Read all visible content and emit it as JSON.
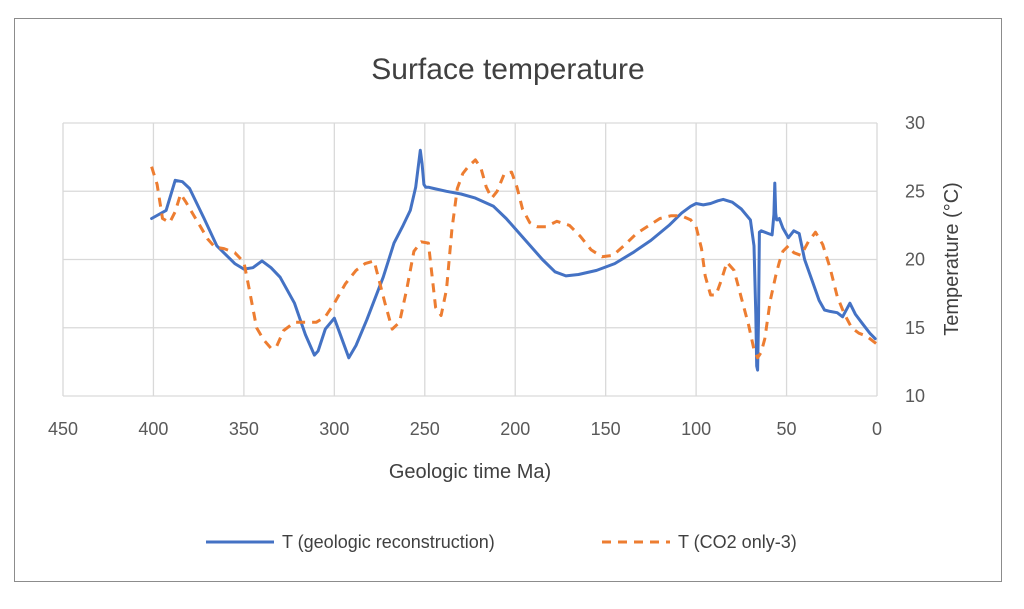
{
  "chart_data": {
    "type": "line",
    "title": "Surface temperature",
    "xlabel": "Geologic time Ma)",
    "ylabel": "Temperature (°C)",
    "xlim": [
      450,
      0
    ],
    "ylim": [
      10,
      30
    ],
    "x_ticks": [
      450,
      400,
      350,
      300,
      250,
      200,
      150,
      100,
      50,
      0
    ],
    "y_ticks": [
      10,
      15,
      20,
      25,
      30
    ],
    "y_axis_side": "right",
    "grid": true,
    "legend_position": "bottom",
    "series": [
      {
        "name": "T (geologic reconstruction)",
        "color": "#4472C4",
        "style": "solid",
        "x": [
          401,
          393,
          388,
          384,
          380,
          372,
          365,
          355,
          350,
          345,
          340,
          335,
          330,
          322,
          316,
          311,
          309,
          305,
          300,
          297,
          292,
          288,
          282,
          273,
          267,
          262,
          258,
          255,
          252.5,
          251.5,
          250.5,
          249.5,
          248,
          245,
          238,
          230,
          222,
          212,
          205,
          195,
          185,
          178,
          172,
          165,
          155,
          145,
          135,
          125,
          115,
          108,
          103,
          100,
          96,
          92,
          88,
          85,
          80,
          75,
          70,
          68,
          67,
          66.5,
          66,
          65.5,
          65,
          64,
          62,
          60,
          58,
          57,
          56.5,
          56,
          55.5,
          55,
          54,
          52,
          49,
          46,
          43,
          40,
          36,
          32,
          29,
          26,
          22,
          19,
          15,
          12,
          8,
          4,
          1
        ],
        "y": [
          23,
          23.6,
          25.8,
          25.7,
          25.2,
          23,
          21,
          19.7,
          19.3,
          19.4,
          19.9,
          19.4,
          18.7,
          16.8,
          14.5,
          13,
          13.3,
          14.9,
          15.7,
          14.6,
          12.8,
          13.7,
          15.6,
          18.7,
          21.2,
          22.5,
          23.6,
          25.3,
          28,
          27,
          25.5,
          25.3,
          25.3,
          25.2,
          25.0,
          24.8,
          24.5,
          23.9,
          23,
          21.5,
          20,
          19.1,
          18.8,
          18.9,
          19.2,
          19.7,
          20.5,
          21.4,
          22.5,
          23.4,
          23.9,
          24.1,
          24.0,
          24.1,
          24.3,
          24.4,
          24.2,
          23.7,
          22.9,
          21,
          16,
          12.2,
          11.9,
          15.5,
          22,
          22.1,
          22.0,
          21.9,
          21.8,
          23.3,
          25.6,
          23.4,
          22.9,
          22.9,
          23.0,
          22.3,
          21.6,
          22.1,
          21.9,
          20.0,
          18.5,
          17,
          16.3,
          16.2,
          16.1,
          15.8,
          16.8,
          16.0,
          15.3,
          14.6,
          14.2
        ]
      },
      {
        "name": "T (CO2 only-3)",
        "color": "#ED7D31",
        "style": "dashed",
        "x": [
          401,
          398,
          395,
          391,
          388,
          385,
          382,
          378,
          374,
          370,
          366,
          361,
          355,
          350,
          347,
          343,
          339,
          335,
          332,
          328,
          322,
          315,
          310,
          305,
          300,
          294,
          288,
          283,
          278,
          272,
          268,
          264,
          260,
          256,
          252,
          248,
          244,
          241,
          238,
          235,
          232,
          229,
          226,
          222,
          219,
          216,
          213,
          210,
          206,
          202,
          199,
          196,
          192,
          188,
          183,
          177,
          170,
          164,
          158,
          152,
          146,
          140,
          133,
          126,
          120,
          114,
          108,
          103,
          100,
          97,
          95,
          92,
          89,
          86,
          83,
          79,
          75,
          71,
          68,
          66,
          64,
          62,
          59,
          56,
          54,
          52,
          49,
          46,
          42,
          38,
          34,
          30,
          26,
          22,
          18,
          14,
          10,
          6,
          2,
          0
        ],
        "y": [
          26.8,
          25.5,
          23,
          22.7,
          23.5,
          24.8,
          24.2,
          23.3,
          22.4,
          21.5,
          20.9,
          20.8,
          20.5,
          19.8,
          17.8,
          15,
          14.1,
          13.5,
          13.6,
          14.8,
          15.4,
          15.4,
          15.4,
          15.8,
          16.8,
          18.2,
          19.2,
          19.7,
          19.9,
          16.8,
          14.9,
          15.4,
          17.8,
          20.6,
          21.3,
          21.2,
          16.5,
          15.9,
          17.8,
          22.2,
          25.2,
          26.3,
          26.8,
          27.3,
          26.7,
          25.3,
          24.5,
          25,
          26.3,
          26.4,
          25.3,
          23.7,
          22.7,
          22.4,
          22.4,
          22.8,
          22.5,
          21.7,
          20.7,
          20.2,
          20.3,
          21,
          21.9,
          22.5,
          23,
          23.2,
          23.2,
          22.9,
          22.4,
          20.8,
          18.8,
          17.4,
          17.4,
          18.5,
          19.8,
          19.2,
          17.2,
          15.2,
          13.4,
          12.8,
          13.2,
          14.2,
          17,
          18.8,
          19.8,
          20.6,
          21,
          20.5,
          20.3,
          21.3,
          22,
          21.1,
          19.4,
          17.3,
          16,
          15,
          14.6,
          14.4,
          14,
          13.8
        ]
      }
    ]
  }
}
